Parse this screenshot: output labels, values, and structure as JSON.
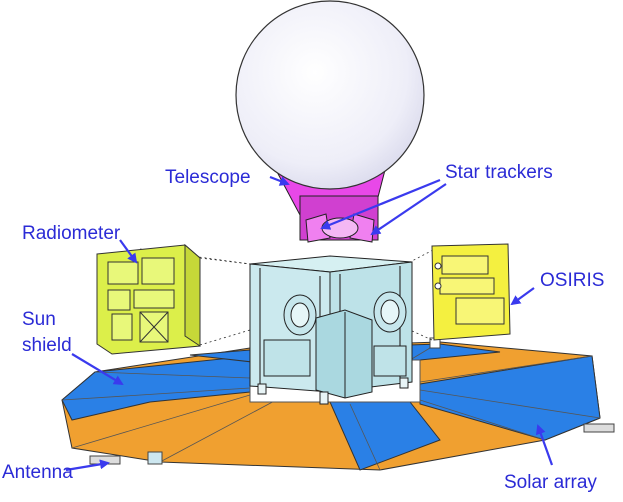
{
  "labels": {
    "telescope": "Telescope",
    "star_trackers": "Star trackers",
    "radiometer": "Radiometer",
    "osiris": "OSIRIS",
    "sun_shield_line1": "Sun",
    "sun_shield_line2": "shield",
    "antenna": "Antenna",
    "solar_array": "Solar array"
  },
  "colors": {
    "label_text": "#2b2bd6",
    "arrow": "#3a3aee",
    "telescope_sphere": "#eeeef8",
    "telescope_mount": "#e040e0",
    "radiometer": "#ddf04a",
    "osiris": "#f4f040",
    "bus_structure": "#bfe8ee",
    "solar_panel_orange": "#f0a030",
    "solar_panel_blue": "#2a80e6",
    "outline": "#222222"
  }
}
